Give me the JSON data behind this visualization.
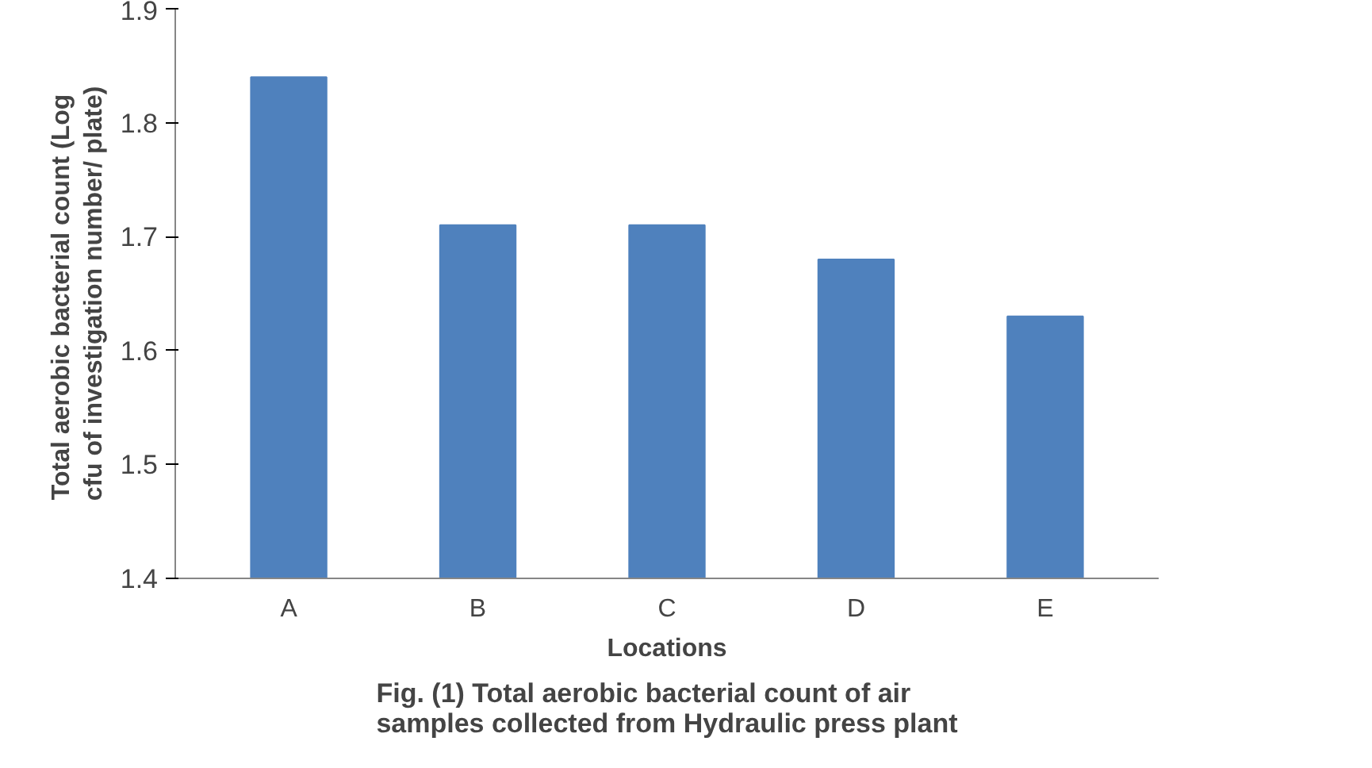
{
  "chart_data": {
    "type": "bar",
    "title": "Fig. (1) Total aerobic bacterial count of air samples collected from Hydraulic press plant",
    "xlabel": "Locations",
    "ylabel": "Total aerobic bacterial count  (Log cfu of investigation number/ plate)",
    "categories": [
      "A",
      "B",
      "C",
      "D",
      "E"
    ],
    "values": [
      1.84,
      1.71,
      1.71,
      1.68,
      1.63
    ],
    "color": "#4f81bd",
    "ylim": [
      1.4,
      1.9
    ],
    "yticks": [
      1.4,
      1.5,
      1.6,
      1.7,
      1.8,
      1.9
    ],
    "grid": false
  }
}
